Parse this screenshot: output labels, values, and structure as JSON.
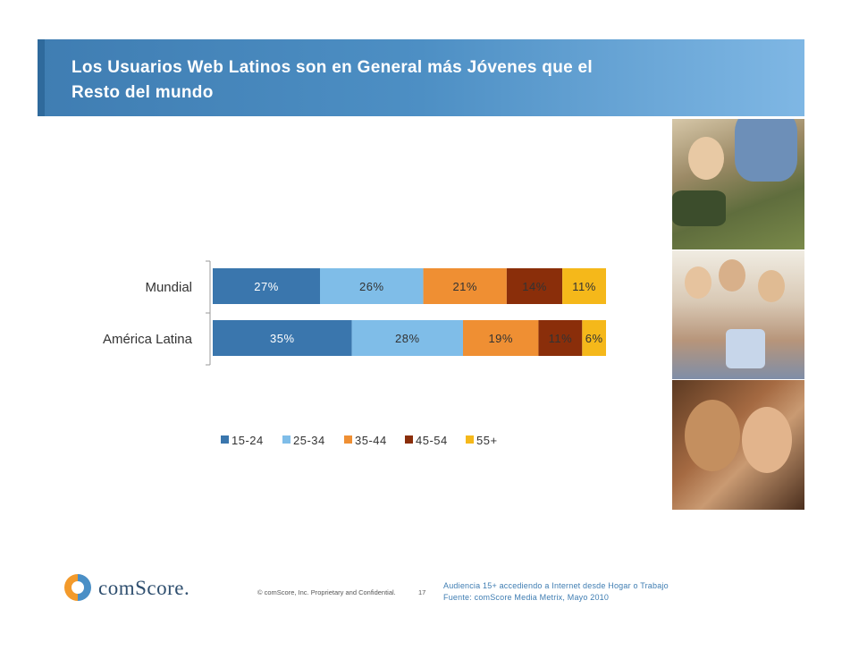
{
  "header": {
    "title_line1": "Los Usuarios Web Latinos son en General más Jóvenes que el",
    "title_line2": "Resto del mundo",
    "band_color": "#4d8fc4"
  },
  "chart_data": {
    "type": "bar",
    "orientation": "horizontal",
    "stacked": true,
    "categories": [
      "Mundial",
      "América Latina"
    ],
    "series": [
      {
        "name": "15-24",
        "color": "#3a76ad",
        "values": [
          27,
          35
        ]
      },
      {
        "name": "25-34",
        "color": "#7fbde8",
        "values": [
          26,
          28
        ]
      },
      {
        "name": "35-44",
        "color": "#ef8f33",
        "values": [
          21,
          19
        ]
      },
      {
        "name": "45-54",
        "color": "#8a2e0a",
        "values": [
          14,
          11
        ]
      },
      {
        "name": "55+",
        "color": "#f5b81a",
        "values": [
          11,
          6
        ]
      }
    ],
    "data_labels": [
      [
        "27%",
        "26%",
        "21%",
        "14%",
        "11%"
      ],
      [
        "35%",
        "28%",
        "19%",
        "11%",
        "6%"
      ]
    ],
    "legend_position": "bottom",
    "grid": false
  },
  "photos": [
    {
      "name": "boy-playing-videogame",
      "description_icon": "photo-icon"
    },
    {
      "name": "girls-shopping",
      "description_icon": "photo-icon"
    },
    {
      "name": "smiling-couple",
      "description_icon": "photo-icon"
    }
  ],
  "footer": {
    "logo_text": "comScore.",
    "copyright": "© comScore, Inc.  Proprietary and Confidential.",
    "page_number": "17",
    "source_line1": "Audiencia 15+ accediendo a Internet desde Hogar o Trabajo",
    "source_line2": "Fuente:  comScore Media Metrix, Mayo  2010"
  }
}
